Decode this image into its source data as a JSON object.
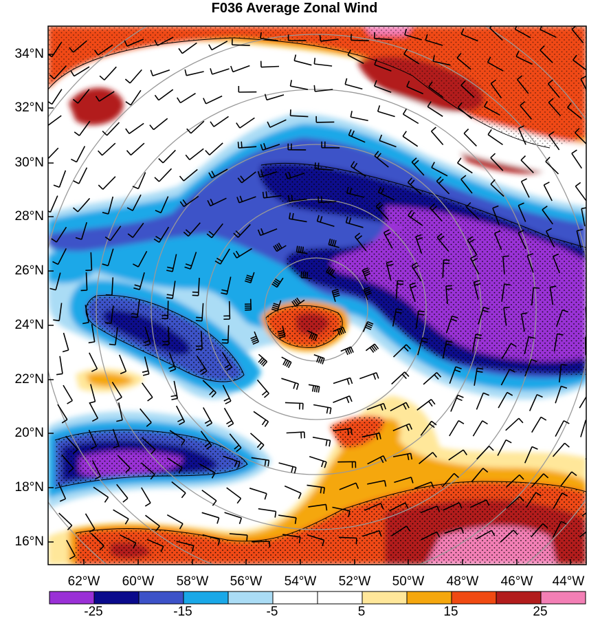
{
  "title": "F036 Average Zonal Wind",
  "lat_labels": [
    "34°N",
    "32°N",
    "30°N",
    "28°N",
    "26°N",
    "24°N",
    "22°N",
    "20°N",
    "18°N",
    "16°N"
  ],
  "lon_labels": [
    "62°W",
    "60°W",
    "58°W",
    "56°W",
    "54°W",
    "52°W",
    "50°W",
    "48°W",
    "46°W",
    "44°W"
  ],
  "colorbar": {
    "colors": [
      "#9a30d6",
      "#0a0a8c",
      "#3c52c8",
      "#1aa8e8",
      "#aadcf5",
      "#ffffff",
      "#ffffff",
      "#ffe79a",
      "#f5a70e",
      "#f04a12",
      "#b21c1c",
      "#f37fb5"
    ],
    "labels": [
      "-25",
      "-15",
      "-5",
      "5",
      "15",
      "25"
    ]
  }
}
